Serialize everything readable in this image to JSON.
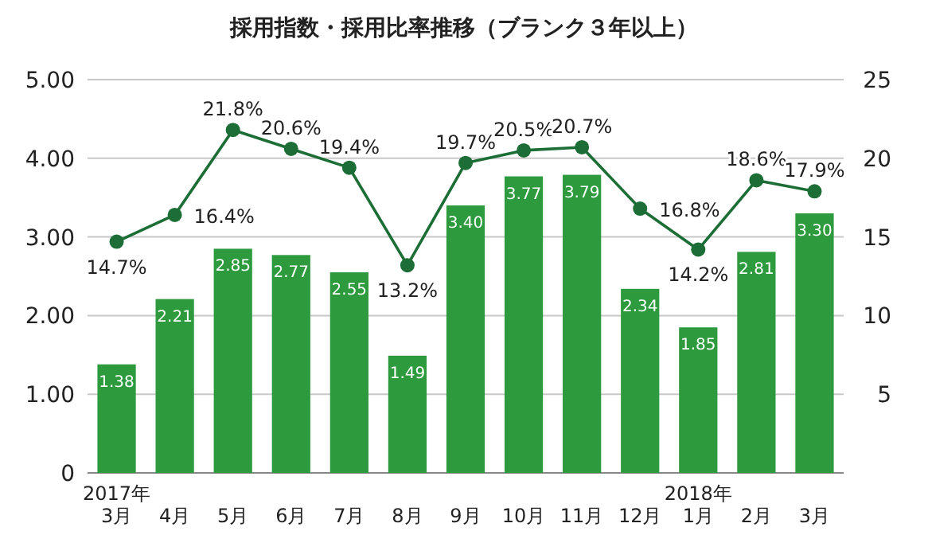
{
  "chart_data": {
    "type": "bar",
    "title": "採用指数・採用比率推移（ブランク３年以上）",
    "categories": [
      "2017年\n3月",
      "4月",
      "5月",
      "6月",
      "7月",
      "8月",
      "9月",
      "10月",
      "11月",
      "12月",
      "2018年\n1月",
      "2月",
      "3月"
    ],
    "series": [
      {
        "color": "#2e9a3e",
        "values": [
          1.38,
          2.21,
          2.85,
          2.77,
          2.55,
          1.49,
          3.4,
          3.77,
          3.79,
          2.34,
          1.85,
          2.81,
          3.3
        ],
        "value_labels": [
          "1.38",
          "2.21",
          "2.85",
          "2.77",
          "2.55",
          "1.49",
          "3.40",
          "3.77",
          "3.79",
          "2.34",
          "1.85",
          "2.81",
          "3.30"
        ]
      },
      {
        "type": "line",
        "axis": "y2",
        "color": "#1d6e36",
        "marker": "circle",
        "values": [
          14.7,
          16.4,
          21.8,
          20.6,
          19.4,
          13.2,
          19.7,
          20.5,
          20.7,
          16.8,
          14.2,
          18.6,
          17.9
        ],
        "value_labels": [
          "14.7%",
          "16.4%",
          "21.8%",
          "20.6%",
          "19.4%",
          "13.2%",
          "19.7%",
          "20.5%",
          "20.7%",
          "16.8%",
          "14.2%",
          "18.6%",
          "17.9%"
        ]
      }
    ],
    "ylim": [
      0,
      5
    ],
    "yticks": [
      {
        "value": 0,
        "label": "0"
      },
      {
        "value": 1,
        "label": "1.00"
      },
      {
        "value": 2,
        "label": "2.00"
      },
      {
        "value": 3,
        "label": "3.00"
      },
      {
        "value": 4,
        "label": "4.00"
      },
      {
        "value": 5,
        "label": "5.00"
      }
    ],
    "y2lim": [
      0,
      25
    ],
    "y2ticks": [
      5,
      10,
      15,
      20,
      25
    ],
    "grid": "y"
  }
}
